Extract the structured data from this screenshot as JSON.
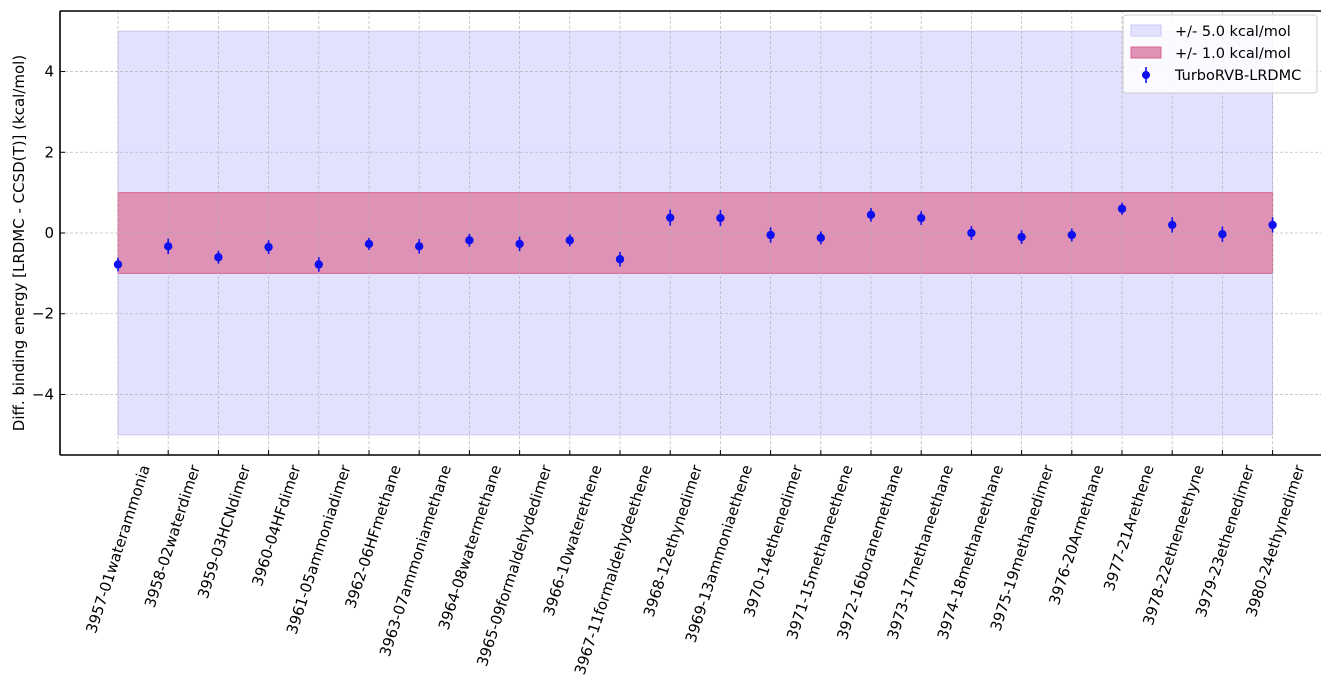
{
  "chart_data": {
    "type": "scatter",
    "title": "",
    "xlabel": "",
    "ylabel": "Diff. binding energy [LRDMC - CCSD(T)] (kcal/mol)",
    "ylim": [
      -5.5,
      5.5
    ],
    "yticks": [
      -4,
      -2,
      0,
      2,
      4
    ],
    "ytick_labels": [
      "−4",
      "−2",
      "0",
      "2",
      "4"
    ],
    "grid": true,
    "legend_position": "top-right",
    "categories": [
      "3957-01waterammonia",
      "3958-02waterdimer",
      "3959-03HCNdimer",
      "3960-04HFdimer",
      "3961-05ammoniadimer",
      "3962-06HFmethane",
      "3963-07ammoniamethane",
      "3964-08watermethane",
      "3965-09formaldehydedimer",
      "3966-10waterethene",
      "3967-11formaldehydeethene",
      "3968-12ethynedimer",
      "3969-13ammoniaethene",
      "3970-14ethenedimer",
      "3971-15methaneethene",
      "3972-16boranemethane",
      "3973-17methaneethane",
      "3974-18methaneethane",
      "3975-19methanedimer",
      "3976-20Armethane",
      "3977-21Arethene",
      "3978-22etheneethyne",
      "3979-23ethenedimer",
      "3980-24ethynedimer"
    ],
    "series": [
      {
        "name": "TurboRVB-LRDMC",
        "color": "#1010ee",
        "values": [
          -0.78,
          -0.33,
          -0.6,
          -0.35,
          -0.78,
          -0.27,
          -0.33,
          -0.18,
          -0.27,
          -0.18,
          -0.65,
          0.38,
          0.37,
          -0.05,
          -0.12,
          0.45,
          0.37,
          0.0,
          -0.1,
          -0.05,
          0.6,
          0.2,
          -0.03,
          0.2
        ],
        "errors": [
          0.17,
          0.19,
          0.16,
          0.17,
          0.18,
          0.15,
          0.18,
          0.16,
          0.18,
          0.15,
          0.18,
          0.2,
          0.2,
          0.19,
          0.16,
          0.17,
          0.17,
          0.17,
          0.17,
          0.16,
          0.15,
          0.19,
          0.19,
          0.19
        ]
      }
    ],
    "bands": [
      {
        "name": "+/- 5.0 kcal/mol",
        "lower": -5.0,
        "upper": 5.0,
        "color": "#e2e2ff",
        "edge": "#c9c9f3"
      },
      {
        "name": "+/- 1.0 kcal/mol",
        "lower": -1.0,
        "upper": 1.0,
        "color": "#df92b5",
        "edge": "#d8648c"
      }
    ],
    "legend": [
      {
        "label": "+/- 5.0 kcal/mol",
        "kind": "band",
        "color": "#e2e2ff",
        "edge": "#c9c9f3"
      },
      {
        "label": "+/- 1.0 kcal/mol",
        "kind": "band",
        "color": "#df92b5",
        "edge": "#d8648c"
      },
      {
        "label": "TurboRVB-LRDMC",
        "kind": "errorbar",
        "color": "#1010ee"
      }
    ]
  }
}
